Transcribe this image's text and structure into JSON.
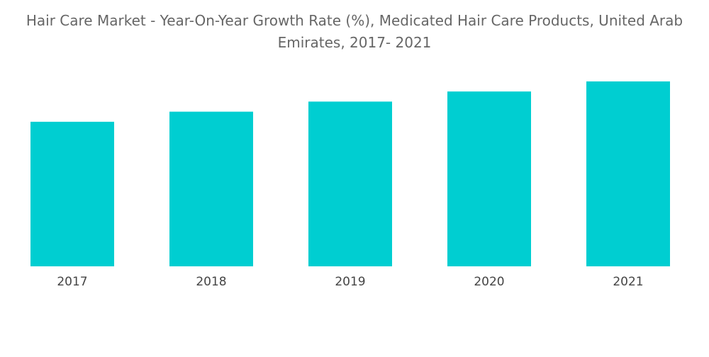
{
  "chart_data": {
    "type": "bar",
    "title": "Hair Care Market - Year-On-Year Growth Rate (%), Medicated Hair Care Products, United Arab Emirates, 2017- 2021",
    "xlabel": "",
    "ylabel": "",
    "categories": [
      "2017",
      "2018",
      "2019",
      "2020",
      "2021"
    ],
    "values": [
      4.3,
      4.6,
      4.9,
      5.2,
      5.5
    ],
    "ylim": [
      0,
      7.5
    ],
    "grid": false,
    "legend": "none",
    "bar_color": "#00CED1"
  }
}
